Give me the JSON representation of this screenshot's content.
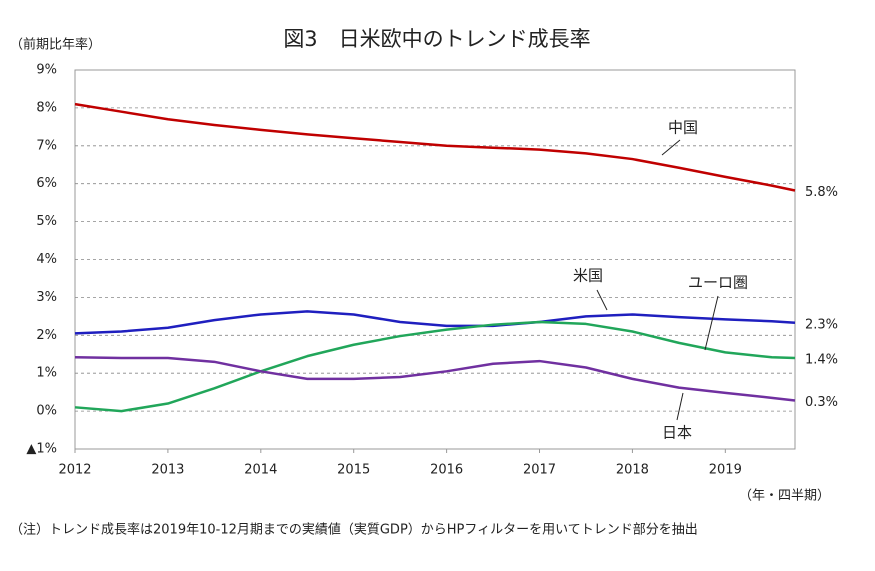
{
  "chart_data": {
    "type": "line",
    "title": "図3　日米欧中のトレンド成長率",
    "y_label": "（前期比年率）",
    "x_label": "（年・四半期）",
    "note": "（注）トレンド成長率は2019年10-12月期までの実績値（実質GDP）からHPフィルターを用いてトレンド部分を抽出",
    "x": [
      2012,
      2012.5,
      2013,
      2013.5,
      2014,
      2014.5,
      2015,
      2015.5,
      2016,
      2016.5,
      2017,
      2017.5,
      2018,
      2018.5,
      2019,
      2019.5,
      2019.75
    ],
    "xlim": [
      2012,
      2019.75
    ],
    "xticks": [
      2012,
      2013,
      2014,
      2015,
      2016,
      2017,
      2018,
      2019
    ],
    "ylim": [
      -1,
      9
    ],
    "yticks": [
      {
        "value": -1,
        "label": "▲1%"
      },
      {
        "value": 0,
        "label": "0%"
      },
      {
        "value": 1,
        "label": "1%"
      },
      {
        "value": 2,
        "label": "2%"
      },
      {
        "value": 3,
        "label": "3%"
      },
      {
        "value": 4,
        "label": "4%"
      },
      {
        "value": 5,
        "label": "5%"
      },
      {
        "value": 6,
        "label": "6%"
      },
      {
        "value": 7,
        "label": "7%"
      },
      {
        "value": 8,
        "label": "8%"
      },
      {
        "value": 9,
        "label": "9%"
      }
    ],
    "grid": true,
    "series": [
      {
        "name": "中国",
        "color": "#c00000",
        "values": [
          8.1,
          7.9,
          7.7,
          7.55,
          7.42,
          7.3,
          7.2,
          7.1,
          7.0,
          6.95,
          6.9,
          6.8,
          6.65,
          6.42,
          6.18,
          5.95,
          5.82
        ],
        "value_labels": [
          null,
          null,
          null,
          null,
          null,
          null,
          null,
          null,
          null,
          null,
          null,
          null,
          null,
          null,
          null,
          null,
          "5.8%"
        ]
      },
      {
        "name": "米国",
        "color": "#1f1fbf",
        "values": [
          2.05,
          2.1,
          2.2,
          2.4,
          2.55,
          2.63,
          2.55,
          2.35,
          2.25,
          2.25,
          2.35,
          2.5,
          2.55,
          2.48,
          2.42,
          2.37,
          2.33
        ],
        "value_labels": [
          null,
          null,
          null,
          null,
          null,
          null,
          null,
          null,
          null,
          null,
          null,
          null,
          null,
          null,
          null,
          null,
          "2.3%"
        ]
      },
      {
        "name": "ユーロ圏",
        "color": "#21a65a",
        "values": [
          0.1,
          0.0,
          0.2,
          0.6,
          1.05,
          1.45,
          1.75,
          1.98,
          2.15,
          2.28,
          2.35,
          2.3,
          2.1,
          1.8,
          1.55,
          1.42,
          1.4
        ],
        "value_labels": [
          null,
          null,
          null,
          null,
          null,
          null,
          null,
          null,
          null,
          null,
          null,
          null,
          null,
          null,
          null,
          null,
          "1.4%"
        ]
      },
      {
        "name": "日本",
        "color": "#7030a0",
        "values": [
          1.42,
          1.4,
          1.4,
          1.3,
          1.05,
          0.85,
          0.85,
          0.9,
          1.05,
          1.25,
          1.32,
          1.15,
          0.85,
          0.62,
          0.48,
          0.35,
          0.28
        ],
        "value_labels": [
          null,
          null,
          null,
          null,
          null,
          null,
          null,
          null,
          null,
          null,
          null,
          null,
          null,
          null,
          null,
          null,
          "0.3%"
        ]
      }
    ]
  }
}
